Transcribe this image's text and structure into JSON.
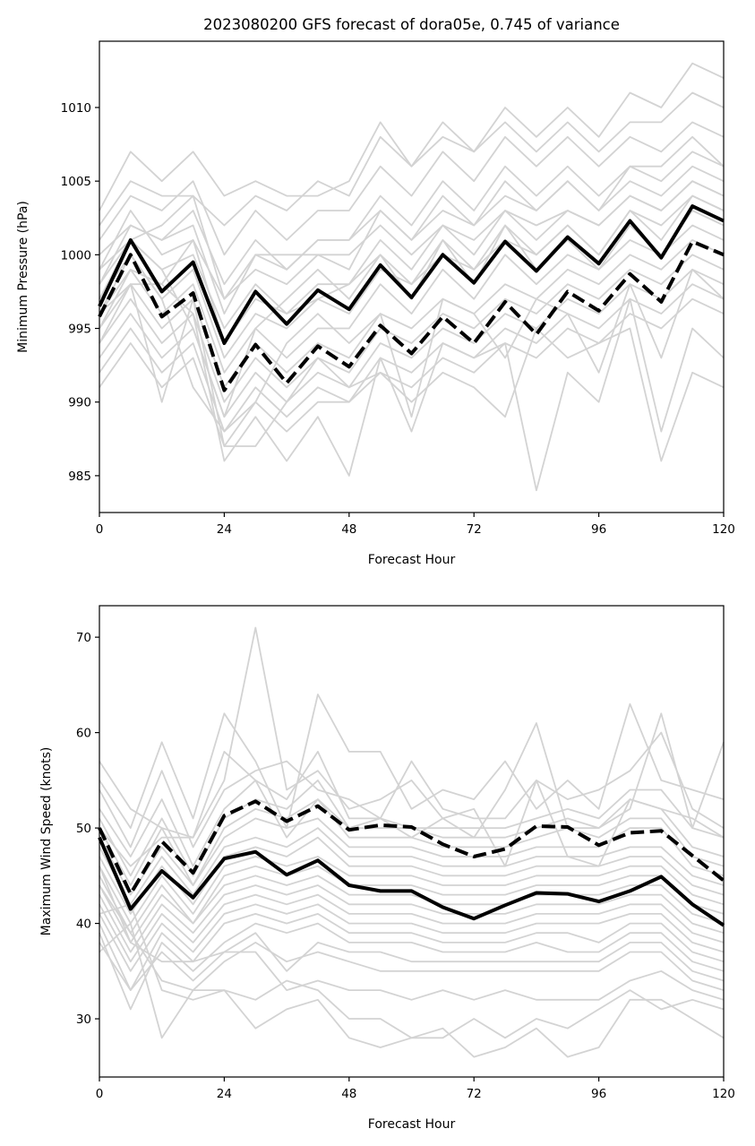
{
  "chart_data": [
    {
      "type": "line",
      "title": "2023080200 GFS forecast of dora05e, 0.745 of variance",
      "xlabel": "Forecast Hour",
      "ylabel": "Minimum Pressure (hPa)",
      "xlim": [
        0,
        120
      ],
      "ylim": [
        982.5,
        1014.5
      ],
      "xticks": [
        0,
        24,
        48,
        72,
        96,
        120
      ],
      "yticks": [
        985,
        990,
        995,
        1000,
        1005,
        1010
      ],
      "grid": false,
      "colors": {
        "ensemble": "#d3d3d3",
        "highlight": "#000000"
      },
      "x": [
        0,
        6,
        12,
        18,
        24,
        30,
        36,
        42,
        48,
        54,
        60,
        66,
        72,
        78,
        84,
        90,
        96,
        102,
        108,
        114,
        120
      ],
      "ensemble": [
        [
          1003,
          1007,
          1005,
          1007,
          1004,
          1005,
          1004,
          1004,
          1005,
          1009,
          1006,
          1009,
          1007,
          1010,
          1008,
          1010,
          1008,
          1011,
          1010,
          1013,
          1012
        ],
        [
          1002,
          1005,
          1004,
          1004,
          1002,
          1004,
          1003,
          1005,
          1004,
          1008,
          1006,
          1008,
          1007,
          1009,
          1007,
          1009,
          1007,
          1009,
          1009,
          1011,
          1010
        ],
        [
          1001,
          1004,
          1003,
          1005,
          1000,
          1003,
          1001,
          1003,
          1003,
          1006,
          1004,
          1007,
          1005,
          1008,
          1006,
          1008,
          1006,
          1008,
          1007,
          1009,
          1008
        ],
        [
          1000,
          1002,
          1001,
          1003,
          998,
          1001,
          999,
          1001,
          1001,
          1004,
          1002,
          1005,
          1003,
          1006,
          1004,
          1006,
          1004,
          1006,
          1006,
          1008,
          1006
        ],
        [
          999,
          1003,
          1000,
          1001,
          997,
          999,
          998,
          1000,
          999,
          1003,
          1001,
          1003,
          1002,
          1004,
          1003,
          1005,
          1003,
          1005,
          1004,
          1006,
          1005
        ],
        [
          998,
          1001,
          999,
          1000,
          995,
          998,
          996,
          998,
          998,
          1001,
          999,
          1002,
          1000,
          1003,
          1001,
          1003,
          1002,
          1004,
          1003,
          1005,
          1004
        ],
        [
          997,
          1000,
          997,
          999,
          993,
          996,
          995,
          997,
          996,
          999,
          998,
          1000,
          999,
          1001,
          1000,
          1002,
          1000,
          1003,
          1001,
          1004,
          1003
        ],
        [
          996,
          999,
          996,
          998,
          992,
          995,
          993,
          995,
          995,
          998,
          996,
          999,
          997,
          1000,
          998,
          1000,
          999,
          1001,
          1000,
          1002,
          1001
        ],
        [
          995,
          998,
          995,
          997,
          991,
          994,
          992,
          994,
          993,
          996,
          995,
          997,
          996,
          998,
          997,
          999,
          998,
          1000,
          999,
          1001,
          1000
        ],
        [
          994,
          997,
          994,
          996,
          990,
          993,
          991,
          993,
          992,
          995,
          994,
          996,
          995,
          997,
          996,
          998,
          997,
          999,
          998,
          1000,
          999
        ],
        [
          993,
          996,
          993,
          995,
          989,
          992,
          990,
          992,
          991,
          994,
          993,
          995,
          994,
          996,
          995,
          997,
          996,
          998,
          997,
          999,
          998
        ],
        [
          992,
          995,
          992,
          994,
          988,
          991,
          989,
          991,
          990,
          993,
          992,
          994,
          993,
          995,
          994,
          996,
          995,
          997,
          996,
          998,
          997
        ],
        [
          991,
          994,
          991,
          993,
          987,
          990,
          988,
          990,
          990,
          992,
          991,
          993,
          992,
          994,
          993,
          995,
          994,
          996,
          995,
          997,
          996
        ],
        [
          995,
          999,
          998,
          996,
          986,
          989,
          986,
          989,
          985,
          993,
          988,
          994,
          993,
          994,
          984,
          992,
          990,
          997,
          988,
          995,
          993
        ],
        [
          994,
          998,
          990,
          997,
          987,
          987,
          990,
          993,
          991,
          992,
          990,
          992,
          991,
          989,
          995,
          993,
          994,
          995,
          986,
          992,
          991
        ],
        [
          996,
          1000,
          997,
          991,
          988,
          990,
          994,
          996,
          994,
          996,
          989,
          997,
          996,
          993,
          997,
          996,
          992,
          998,
          993,
          999,
          997
        ],
        [
          997,
          1001,
          999,
          995,
          989,
          995,
          997,
          999,
          997,
          1000,
          997,
          1001,
          998,
          1002,
          999,
          1001,
          999,
          1002,
          1000,
          1003,
          1002
        ],
        [
          998,
          1002,
          1001,
          1002,
          996,
          1000,
          1000,
          1000,
          1000,
          1002,
          1000,
          1002,
          1001,
          1003,
          1002,
          1003,
          1002,
          1004,
          1003,
          1005,
          1004
        ],
        [
          999,
          1001,
          1002,
          1004,
          997,
          1000,
          999,
          1001,
          1001,
          1003,
          1001,
          1004,
          1002,
          1005,
          1003,
          1005,
          1003,
          1006,
          1005,
          1007,
          1006
        ],
        [
          996,
          998,
          998,
          1001,
          994,
          997,
          996,
          997,
          998,
          1000,
          998,
          1001,
          999,
          1002,
          1000,
          1002,
          1000,
          1003,
          1002,
          1004,
          1003
        ]
      ],
      "series": [
        {
          "name": "",
          "style": "solid",
          "values": [
            996.5,
            1001,
            997.5,
            999.5,
            994,
            997.5,
            995.3,
            997.6,
            996.3,
            999.3,
            997.1,
            1000,
            998.1,
            1000.9,
            998.9,
            1001.2,
            999.4,
            1002.3,
            999.8,
            1003.3,
            1002.3
          ]
        },
        {
          "name": "",
          "style": "dashed",
          "values": [
            995.8,
            1000,
            995.8,
            997.4,
            990.8,
            993.9,
            991.3,
            993.8,
            992.4,
            995.2,
            993.3,
            995.8,
            994,
            996.8,
            994.6,
            997.5,
            996.2,
            998.7,
            996.8,
            1000.9,
            1000
          ]
        }
      ]
    },
    {
      "type": "line",
      "title": "",
      "xlabel": "Forecast Hour",
      "ylabel": "Maximum Wind Speed (knots)",
      "xlim": [
        0,
        120
      ],
      "ylim": [
        23.9,
        73.3
      ],
      "xticks": [
        0,
        24,
        48,
        72,
        96,
        120
      ],
      "yticks": [
        30,
        40,
        50,
        60,
        70
      ],
      "grid": false,
      "colors": {
        "ensemble": "#d3d3d3",
        "highlight": "#000000"
      },
      "x": [
        0,
        6,
        12,
        18,
        24,
        30,
        36,
        42,
        48,
        54,
        60,
        66,
        72,
        78,
        84,
        90,
        96,
        102,
        108,
        114,
        120
      ],
      "ensemble": [
        [
          57,
          52,
          50,
          49,
          55,
          71,
          54,
          56,
          52,
          53,
          55,
          51,
          49,
          54,
          61,
          50,
          50,
          52,
          62,
          50,
          59
        ],
        [
          55,
          50,
          59,
          51,
          62,
          57,
          50,
          64,
          58,
          58,
          52,
          54,
          53,
          57,
          52,
          55,
          52,
          63,
          55,
          54,
          53
        ],
        [
          54,
          48,
          56,
          48,
          54,
          56,
          57,
          54,
          53,
          51,
          57,
          52,
          51,
          51,
          55,
          53,
          54,
          56,
          60,
          52,
          50
        ],
        [
          52,
          47,
          53,
          46,
          52,
          55,
          53,
          58,
          51,
          51,
          50,
          50,
          50,
          50,
          51,
          52,
          51,
          54,
          54,
          50,
          49
        ],
        [
          51,
          45,
          51,
          45,
          51,
          53,
          52,
          55,
          50,
          50,
          50,
          49,
          49,
          49,
          50,
          51,
          50,
          53,
          52,
          48,
          47
        ],
        [
          50,
          44,
          50,
          44,
          50,
          52,
          51,
          53,
          49,
          49,
          49,
          48,
          48,
          48,
          49,
          50,
          49,
          51,
          51,
          47,
          46
        ],
        [
          49,
          43,
          48,
          44,
          49,
          51,
          50,
          51,
          48,
          48,
          48,
          47,
          47,
          47,
          48,
          48,
          48,
          50,
          50,
          46,
          45
        ],
        [
          48,
          42,
          47,
          43,
          48,
          49,
          48,
          50,
          47,
          47,
          47,
          46,
          46,
          46,
          47,
          47,
          47,
          48,
          48,
          45,
          44
        ],
        [
          47,
          41,
          46,
          42,
          47,
          48,
          47,
          49,
          46,
          46,
          46,
          45,
          45,
          45,
          46,
          46,
          46,
          47,
          47,
          44,
          43
        ],
        [
          46,
          40,
          45,
          41,
          46,
          47,
          46,
          47,
          45,
          45,
          45,
          44,
          44,
          44,
          45,
          45,
          45,
          46,
          46,
          43,
          42
        ],
        [
          45,
          39,
          44,
          40,
          45,
          46,
          45,
          46,
          44,
          44,
          44,
          43,
          43,
          43,
          44,
          44,
          44,
          45,
          45,
          42,
          41
        ],
        [
          44,
          38,
          43,
          40,
          44,
          45,
          44,
          45,
          43,
          43,
          43,
          42,
          42,
          42,
          43,
          43,
          43,
          44,
          44,
          41,
          40
        ],
        [
          43,
          37,
          42,
          39,
          43,
          44,
          43,
          44,
          42,
          42,
          42,
          41,
          41,
          41,
          42,
          42,
          42,
          43,
          43,
          40,
          39
        ],
        [
          42,
          36,
          41,
          38,
          42,
          43,
          42,
          43,
          41,
          41,
          41,
          40,
          40,
          40,
          41,
          41,
          41,
          42,
          42,
          39,
          38
        ],
        [
          41,
          35,
          40,
          37,
          41,
          42,
          41,
          42,
          40,
          40,
          40,
          39,
          39,
          39,
          40,
          40,
          40,
          41,
          41,
          38,
          37
        ],
        [
          40,
          33,
          39,
          36,
          40,
          41,
          40,
          41,
          39,
          39,
          39,
          38,
          38,
          38,
          39,
          39,
          38,
          40,
          40,
          37,
          36
        ],
        [
          39,
          31,
          38,
          35,
          38,
          40,
          39,
          40,
          38,
          38,
          38,
          37,
          37,
          37,
          38,
          37,
          37,
          39,
          39,
          36,
          35
        ],
        [
          38,
          33,
          37,
          34,
          37,
          39,
          35,
          38,
          37,
          37,
          36,
          36,
          36,
          36,
          36,
          36,
          36,
          38,
          38,
          35,
          34
        ],
        [
          37,
          40,
          28,
          33,
          36,
          38,
          36,
          37,
          36,
          35,
          35,
          35,
          35,
          35,
          35,
          35,
          35,
          37,
          37,
          34,
          33
        ],
        [
          46,
          38,
          36,
          36,
          37,
          37,
          33,
          34,
          33,
          33,
          32,
          33,
          32,
          33,
          32,
          32,
          32,
          34,
          35,
          33,
          32
        ],
        [
          44,
          39,
          34,
          33,
          33,
          29,
          31,
          32,
          28,
          27,
          28,
          28,
          30,
          28,
          30,
          29,
          31,
          33,
          31,
          32,
          31
        ],
        [
          41,
          42,
          33,
          32,
          33,
          32,
          34,
          33,
          30,
          30,
          28,
          29,
          26,
          27,
          29,
          26,
          27,
          32,
          32,
          30,
          28
        ],
        [
          50,
          46,
          49,
          49,
          58,
          55,
          49,
          53,
          50,
          51,
          49,
          51,
          52,
          46,
          55,
          47,
          46,
          53,
          52,
          51,
          49
        ]
      ],
      "series": [
        {
          "name": "",
          "style": "solid",
          "values": [
            49,
            41.5,
            45.5,
            42.7,
            46.8,
            47.5,
            45.1,
            46.6,
            44,
            43.4,
            43.4,
            41.7,
            40.5,
            41.9,
            43.2,
            43.1,
            42.3,
            43.4,
            44.9,
            42,
            39.8
          ]
        },
        {
          "name": "",
          "style": "dashed",
          "values": [
            50,
            43.1,
            48.6,
            45.3,
            51.3,
            52.8,
            50.7,
            52.3,
            49.8,
            50.3,
            50.1,
            48.3,
            47,
            47.8,
            50.2,
            50.1,
            48.2,
            49.5,
            49.7,
            47.1,
            44.5
          ]
        }
      ]
    }
  ]
}
